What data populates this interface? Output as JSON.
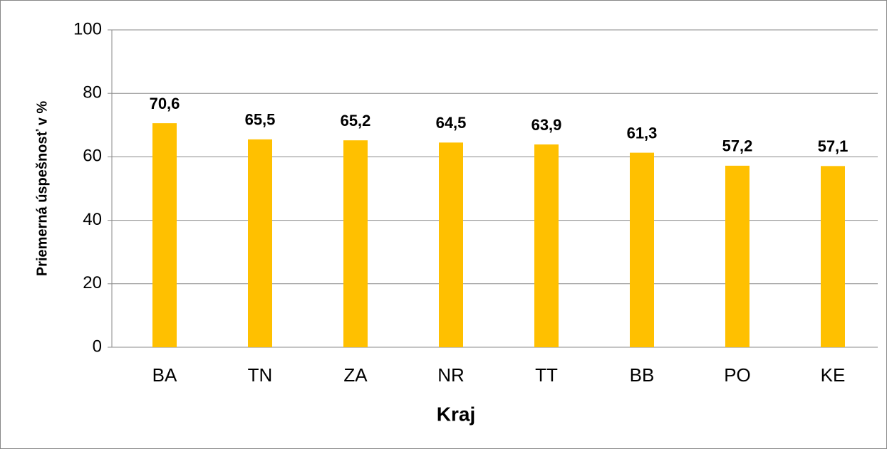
{
  "chart_data": {
    "type": "bar",
    "x_label": "Kraj",
    "y_label": "Priemerná úspešnosť v %",
    "categories": [
      "BA",
      "TN",
      "ZA",
      "NR",
      "TT",
      "BB",
      "PO",
      "KE"
    ],
    "values": [
      70.6,
      65.5,
      65.2,
      64.5,
      63.9,
      61.3,
      57.2,
      57.1
    ],
    "value_labels": [
      "70,6",
      "65,5",
      "65,2",
      "64,5",
      "63,9",
      "61,3",
      "57,2",
      "57,1"
    ],
    "color": "#ffc000",
    "ylim": [
      0,
      100
    ],
    "yticks": [
      0,
      20,
      40,
      60,
      80,
      100
    ],
    "grid": true
  }
}
